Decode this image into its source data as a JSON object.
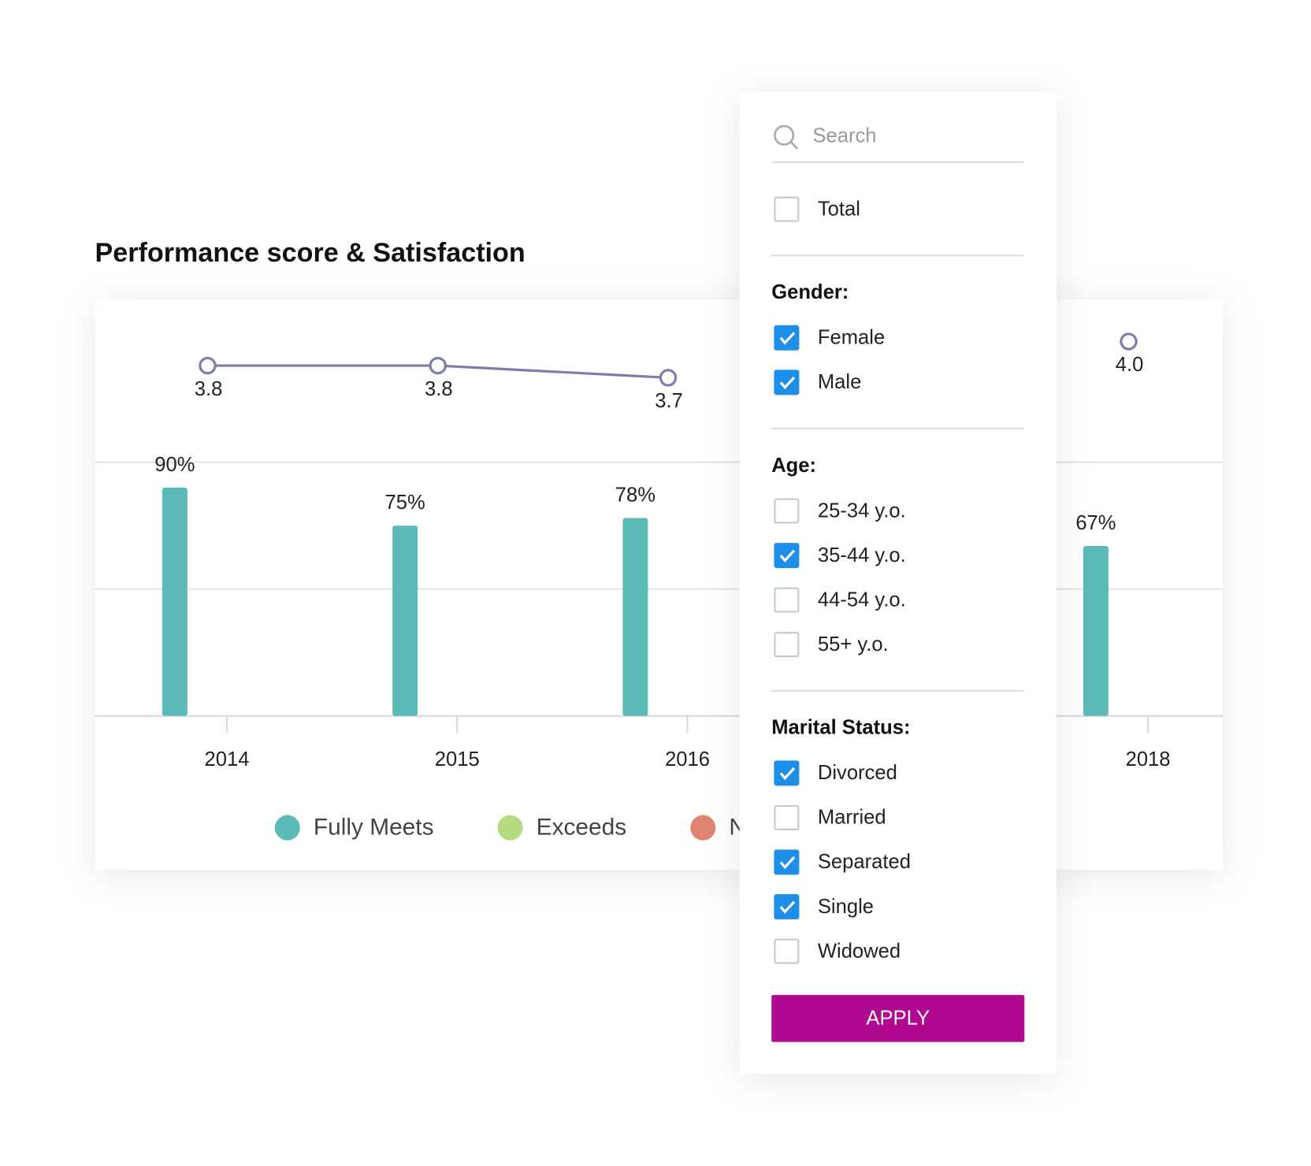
{
  "chart_data": {
    "type": "bar-line",
    "title": "Performance score & Satisfaction",
    "categories": [
      "2014",
      "2015",
      "2016",
      null,
      "2018"
    ],
    "series": [
      {
        "name": "Fully Meets",
        "color": "#5bbab6",
        "values": [
          90,
          75,
          78,
          null,
          67
        ],
        "value_labels": [
          "90%",
          "75%",
          "78%",
          null,
          "67%"
        ]
      },
      {
        "name": "Exceeds",
        "color": "#b5d97e",
        "values": [
          null,
          null,
          null,
          null,
          null
        ]
      },
      {
        "name": "Needs Improvement",
        "color": "#e08470",
        "values": [
          null,
          null,
          null,
          null,
          null
        ]
      },
      {
        "type": "line",
        "axis": "y2",
        "color": "#7b7fa8",
        "values": [
          3.8,
          3.8,
          3.7,
          null,
          4.0
        ],
        "value_labels": [
          "3.8",
          "3.8",
          "3.7",
          null,
          "4.0"
        ]
      }
    ],
    "ylim": [
      0,
      100
    ],
    "yticks": [
      0,
      50,
      100
    ],
    "y2lim": [
      0.9,
      4.35
    ],
    "grid": true
  },
  "filter_panel": {
    "search_placeholder": "Search",
    "total": {
      "label": "Total",
      "checked": false
    },
    "groups": [
      {
        "title": "Gender:",
        "options": [
          {
            "label": "Female",
            "checked": true
          },
          {
            "label": "Male",
            "checked": true
          }
        ]
      },
      {
        "title": "Age:",
        "options": [
          {
            "label": "25-34 y.o.",
            "checked": false
          },
          {
            "label": "35-44 y.o.",
            "checked": true
          },
          {
            "label": "44-54 y.o.",
            "checked": false
          },
          {
            "label": "55+ y.o.",
            "checked": false
          }
        ]
      },
      {
        "title": "Marital Status:",
        "options": [
          {
            "label": "Divorced",
            "checked": true
          },
          {
            "label": "Married",
            "checked": false
          },
          {
            "label": "Separated",
            "checked": true
          },
          {
            "label": "Single",
            "checked": true
          },
          {
            "label": "Widowed",
            "checked": false
          }
        ]
      }
    ],
    "apply_button": "APPLY"
  }
}
